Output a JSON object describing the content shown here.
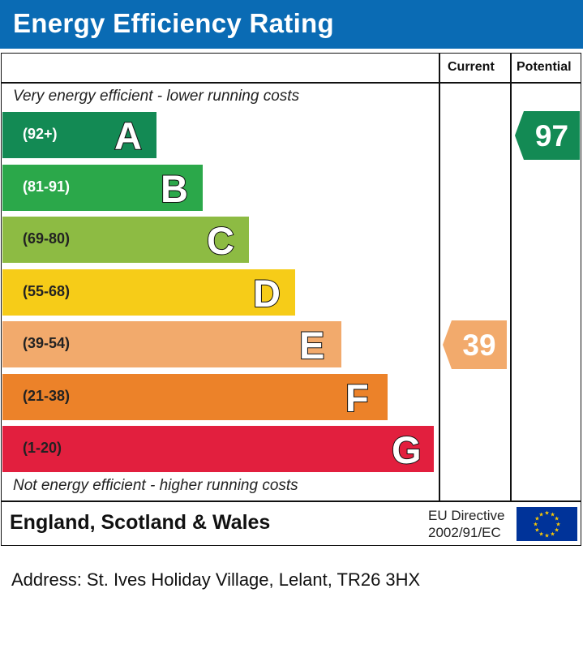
{
  "header": {
    "title": "Energy Efficiency Rating",
    "color": "#0a6bb4"
  },
  "columns": {
    "current": "Current",
    "potential": "Potential"
  },
  "notes": {
    "top": "Very energy efficient - lower running costs",
    "bottom": "Not energy efficient - higher running costs"
  },
  "chart_data": {
    "type": "bar",
    "title": "Energy Efficiency Rating",
    "categories": [
      "A",
      "B",
      "C",
      "D",
      "E",
      "F",
      "G"
    ],
    "bands": [
      {
        "letter": "A",
        "range": "(92+)",
        "color": "#138a54"
      },
      {
        "letter": "B",
        "range": "(81-91)",
        "color": "#2ba84a"
      },
      {
        "letter": "C",
        "range": "(69-80)",
        "color": "#8dbb43"
      },
      {
        "letter": "D",
        "range": "(55-68)",
        "color": "#f6cc18"
      },
      {
        "letter": "E",
        "range": "(39-54)",
        "color": "#f2aa6c"
      },
      {
        "letter": "F",
        "range": "(21-38)",
        "color": "#ec8229"
      },
      {
        "letter": "G",
        "range": "(1-20)",
        "color": "#e21f3e"
      }
    ],
    "current": {
      "value": "39",
      "band": "E",
      "color": "#f2aa6c"
    },
    "potential": {
      "value": "97",
      "band": "A",
      "color": "#138a54"
    }
  },
  "footer": {
    "country": "England, Scotland & Wales",
    "directive_line1": "EU Directive",
    "directive_line2": "2002/91/EC",
    "flag_color": "#003399",
    "star_color": "#ffcc00"
  },
  "address": "Address: St. Ives Holiday Village, Lelant, TR26 3HX"
}
